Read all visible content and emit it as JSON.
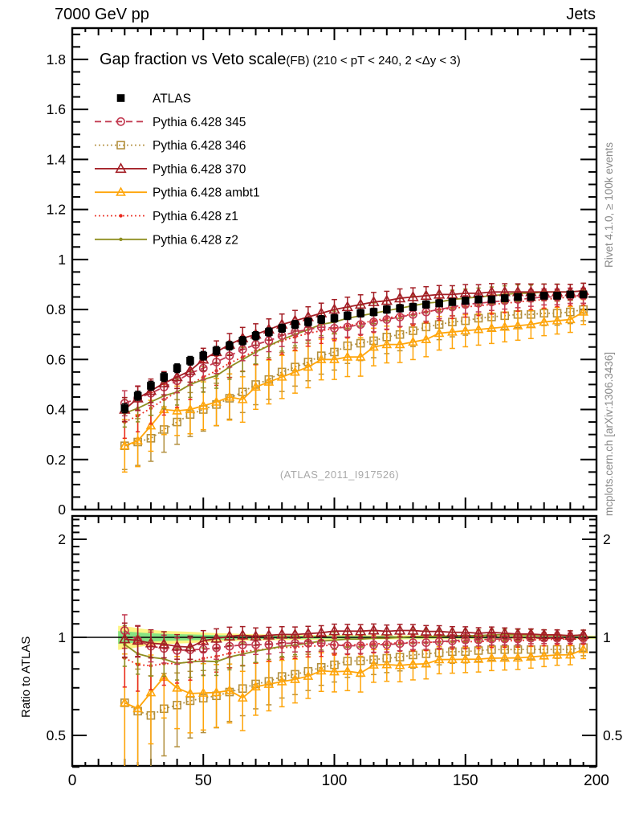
{
  "header": {
    "left": "7000 GeV pp",
    "right": "Jets"
  },
  "title": {
    "main": "Gap fraction vs Veto scale",
    "details": "(FB) (210 < pT < 240, 2 <Δy < 3)"
  },
  "watermark": "(ATLAS_2011_I917526)",
  "side_text_top": "Rivet 4.1.0, ≥ 100k events",
  "side_text_bottom": "mcplots.cern.ch [arXiv:1306.3436]",
  "ratio_ylabel": "Ratio to ATLAS",
  "colors": {
    "frame": "#000000",
    "watermark": "#a9a9a9",
    "side_text": "#8a8a8a",
    "band_outer": "#fdf483",
    "band_inner": "#86e383"
  },
  "chart_data": {
    "type": "line",
    "title": "Gap fraction vs Veto scale (FB) (210 < pT < 240, 2 < dy < 3)",
    "xlabel": "",
    "ylabel": "",
    "xlim": [
      0,
      200
    ],
    "x_ticks": [
      0,
      50,
      100,
      150,
      200
    ],
    "x_tick_labels": [
      "0",
      "50",
      "100",
      "150",
      "200"
    ],
    "main_axis": {
      "ylim": [
        0,
        1.925
      ],
      "ticks": [
        0,
        0.2,
        0.4,
        0.6,
        0.8,
        1,
        1.2,
        1.4,
        1.6,
        1.8
      ],
      "tick_labels": [
        "0",
        "0.2",
        "0.4",
        "0.6",
        "0.8",
        "1",
        "1.2",
        "1.4",
        "1.6",
        "1.8"
      ],
      "minor_step": 0.05
    },
    "ratio_axis": {
      "scale": "log",
      "ylim": [
        0.403,
        2.36
      ],
      "ticks": [
        0.5,
        1,
        2
      ],
      "tick_labels": [
        "0.5",
        "1",
        "2"
      ],
      "minors": [
        0.4,
        0.6,
        0.7,
        0.8,
        0.9,
        1.1,
        1.2,
        1.3,
        1.4,
        1.5,
        1.6,
        1.7,
        1.8,
        1.9,
        2.1,
        2.2,
        2.3
      ]
    },
    "x": [
      20,
      25,
      30,
      35,
      40,
      45,
      50,
      55,
      60,
      65,
      70,
      75,
      80,
      85,
      90,
      95,
      100,
      105,
      110,
      115,
      120,
      125,
      130,
      135,
      140,
      145,
      150,
      155,
      160,
      165,
      170,
      175,
      180,
      185,
      190,
      195
    ],
    "series": [
      {
        "name": "ATLAS",
        "color": "#000000",
        "marker": "square-filled",
        "line": "none",
        "err_first": 0.018,
        "err_last": 0.012,
        "values": [
          0.405,
          0.455,
          0.495,
          0.53,
          0.565,
          0.595,
          0.615,
          0.635,
          0.655,
          0.675,
          0.695,
          0.71,
          0.725,
          0.74,
          0.75,
          0.76,
          0.765,
          0.775,
          0.785,
          0.79,
          0.8,
          0.805,
          0.81,
          0.82,
          0.825,
          0.83,
          0.835,
          0.84,
          0.84,
          0.845,
          0.85,
          0.85,
          0.855,
          0.855,
          0.86,
          0.86
        ]
      },
      {
        "name": "Pythia 6.428 345",
        "color": "#c23a51",
        "marker": "circle-open",
        "line": "dashed",
        "err_first": 0.05,
        "err_last": 0.03,
        "values": [
          0.425,
          0.445,
          0.465,
          0.49,
          0.515,
          0.545,
          0.565,
          0.59,
          0.615,
          0.64,
          0.66,
          0.675,
          0.695,
          0.71,
          0.72,
          0.73,
          0.725,
          0.73,
          0.74,
          0.75,
          0.76,
          0.77,
          0.78,
          0.79,
          0.8,
          0.81,
          0.82,
          0.825,
          0.83,
          0.835,
          0.84,
          0.845,
          0.85,
          0.85,
          0.855,
          0.855
        ]
      },
      {
        "name": "Pythia 6.428 346",
        "color": "#b28f3e",
        "marker": "square-open",
        "line": "dotted",
        "err_first": 0.095,
        "err_last": 0.045,
        "values": [
          0.255,
          0.27,
          0.285,
          0.32,
          0.35,
          0.38,
          0.4,
          0.42,
          0.445,
          0.47,
          0.5,
          0.52,
          0.55,
          0.57,
          0.59,
          0.615,
          0.63,
          0.655,
          0.665,
          0.675,
          0.69,
          0.7,
          0.715,
          0.73,
          0.74,
          0.75,
          0.755,
          0.765,
          0.77,
          0.775,
          0.78,
          0.78,
          0.785,
          0.785,
          0.79,
          0.8
        ]
      },
      {
        "name": "Pythia 6.428 370",
        "color": "#a31e25",
        "marker": "triangle-open",
        "line": "solid",
        "err_first": 0.048,
        "err_last": 0.03,
        "values": [
          0.4,
          0.445,
          0.475,
          0.505,
          0.53,
          0.555,
          0.6,
          0.63,
          0.66,
          0.685,
          0.7,
          0.72,
          0.74,
          0.755,
          0.77,
          0.785,
          0.8,
          0.81,
          0.82,
          0.83,
          0.835,
          0.845,
          0.85,
          0.855,
          0.86,
          0.86,
          0.865,
          0.865,
          0.87,
          0.87,
          0.87,
          0.87,
          0.87,
          0.87,
          0.87,
          0.875
        ]
      },
      {
        "name": "Pythia 6.428 ambt1",
        "color": "#ffa50a",
        "marker": "triangle-open-small",
        "line": "solid",
        "err_first": 0.105,
        "err_last": 0.05,
        "values": [
          0.255,
          0.275,
          0.335,
          0.4,
          0.395,
          0.4,
          0.415,
          0.43,
          0.45,
          0.44,
          0.49,
          0.51,
          0.53,
          0.55,
          0.57,
          0.6,
          0.6,
          0.61,
          0.61,
          0.65,
          0.66,
          0.66,
          0.67,
          0.68,
          0.705,
          0.71,
          0.715,
          0.72,
          0.725,
          0.73,
          0.735,
          0.74,
          0.75,
          0.755,
          0.76,
          0.79
        ]
      },
      {
        "name": "Pythia 6.428 z1",
        "color": "#ea2a1e",
        "marker": "dot",
        "line": "dotted",
        "err_first": 0.065,
        "err_last": 0.032,
        "values": [
          0.35,
          0.375,
          0.405,
          0.44,
          0.47,
          0.5,
          0.53,
          0.555,
          0.585,
          0.61,
          0.635,
          0.655,
          0.675,
          0.69,
          0.705,
          0.715,
          0.725,
          0.735,
          0.745,
          0.755,
          0.765,
          0.775,
          0.78,
          0.79,
          0.8,
          0.805,
          0.81,
          0.815,
          0.82,
          0.825,
          0.83,
          0.835,
          0.84,
          0.845,
          0.85,
          0.85
        ]
      },
      {
        "name": "Pythia 6.428 z2",
        "color": "#8f8f21",
        "marker": "dot",
        "line": "solid",
        "err_first": 0.055,
        "err_last": 0.03,
        "values": [
          0.385,
          0.405,
          0.43,
          0.455,
          0.47,
          0.5,
          0.52,
          0.535,
          0.57,
          0.6,
          0.63,
          0.655,
          0.68,
          0.7,
          0.72,
          0.74,
          0.75,
          0.765,
          0.775,
          0.785,
          0.795,
          0.805,
          0.815,
          0.825,
          0.83,
          0.84,
          0.845,
          0.85,
          0.855,
          0.86,
          0.865,
          0.865,
          0.87,
          0.87,
          0.87,
          0.875
        ]
      }
    ],
    "band": {
      "x": [
        17.5,
        22.5,
        27.5,
        32.5,
        37.5,
        45,
        55,
        70,
        90,
        120,
        200
      ],
      "outer": [
        0.085,
        0.075,
        0.06,
        0.05,
        0.045,
        0.04,
        0.03,
        0.022,
        0.018,
        0.014,
        0.012
      ],
      "inner": [
        0.045,
        0.04,
        0.032,
        0.027,
        0.024,
        0.021,
        0.016,
        0.012,
        0.01,
        0.008,
        0.007
      ]
    },
    "legend_position": "top-left",
    "grid": false
  }
}
